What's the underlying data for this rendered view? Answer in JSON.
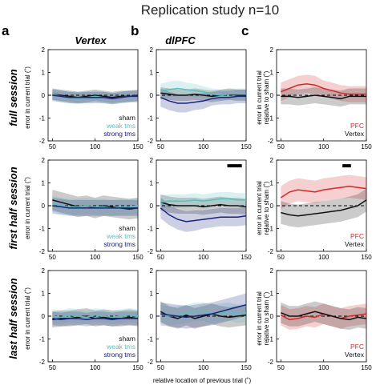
{
  "figure": {
    "title": "Replication study n=10",
    "panel_letters": [
      "a",
      "b",
      "c"
    ],
    "column_titles": [
      "Vertex",
      "dlPFC"
    ],
    "row_titles": [
      "full session",
      "first half session",
      "last half session"
    ],
    "ylabel_left": "error in current trial (˚)",
    "ylabel_right": [
      "error in current trial",
      "relative to sham (˚)"
    ],
    "xlabel": "relative location of previous trial (˚)"
  },
  "colors": {
    "sham": "#111111",
    "weak_tms": "#5bbfbf",
    "strong_tms": "#1a237e",
    "pfc": "#d62728",
    "vertex": "#111111",
    "sig_bar": "#000000"
  },
  "chart_data": [
    {
      "type": "line",
      "row": "full session",
      "column": "Vertex",
      "x": [
        50,
        60,
        70,
        80,
        90,
        100,
        110,
        120,
        130,
        140,
        150
      ],
      "xlim": [
        45,
        150
      ],
      "ylim": [
        -2,
        2
      ],
      "xticks": [
        50,
        100,
        150
      ],
      "yticks": [
        -2,
        -1,
        0,
        1,
        2
      ],
      "reference_line": 0,
      "legend": [
        "sham",
        "weak tms",
        "strong tms"
      ],
      "series": [
        {
          "name": "sham",
          "color": "#111111",
          "values": [
            0.05,
            0.0,
            -0.05,
            -0.1,
            -0.05,
            0.0,
            -0.05,
            -0.1,
            -0.05,
            -0.05,
            0.0
          ],
          "error": [
            0.25,
            0.25,
            0.25,
            0.25,
            0.25,
            0.25,
            0.25,
            0.25,
            0.25,
            0.25,
            0.25
          ]
        },
        {
          "name": "weak tms",
          "color": "#5bbfbf",
          "values": [
            0.05,
            -0.05,
            -0.1,
            -0.15,
            -0.1,
            -0.05,
            -0.1,
            -0.15,
            -0.1,
            -0.05,
            -0.05
          ],
          "error": [
            0.25,
            0.25,
            0.25,
            0.25,
            0.25,
            0.25,
            0.25,
            0.25,
            0.25,
            0.25,
            0.25
          ]
        },
        {
          "name": "strong tms",
          "color": "#1a237e",
          "values": [
            0.0,
            -0.05,
            -0.1,
            -0.1,
            -0.1,
            -0.1,
            -0.1,
            -0.15,
            -0.1,
            -0.05,
            -0.05
          ],
          "error": [
            0.25,
            0.25,
            0.25,
            0.25,
            0.25,
            0.25,
            0.25,
            0.25,
            0.25,
            0.25,
            0.25
          ]
        }
      ]
    },
    {
      "type": "line",
      "row": "full session",
      "column": "dlPFC",
      "x": [
        50,
        60,
        70,
        80,
        90,
        100,
        110,
        120,
        130,
        140,
        150
      ],
      "xlim": [
        45,
        150
      ],
      "ylim": [
        -2,
        2
      ],
      "xticks": [
        50,
        100,
        150
      ],
      "yticks": [
        -2,
        -1,
        0,
        1,
        2
      ],
      "reference_line": 0,
      "series": [
        {
          "name": "sham",
          "color": "#111111",
          "values": [
            0.1,
            0.05,
            0.0,
            0.0,
            0.05,
            0.0,
            -0.05,
            0.0,
            0.05,
            0.0,
            0.0
          ],
          "error": [
            0.25,
            0.25,
            0.25,
            0.25,
            0.25,
            0.25,
            0.25,
            0.25,
            0.25,
            0.25,
            0.25
          ]
        },
        {
          "name": "weak tms",
          "color": "#5bbfbf",
          "values": [
            0.2,
            0.25,
            0.3,
            0.25,
            0.2,
            0.15,
            0.05,
            0.0,
            0.05,
            0.05,
            0.05
          ],
          "error": [
            0.3,
            0.35,
            0.35,
            0.3,
            0.3,
            0.25,
            0.25,
            0.25,
            0.25,
            0.25,
            0.25
          ]
        },
        {
          "name": "strong tms",
          "color": "#1a237e",
          "values": [
            -0.1,
            -0.25,
            -0.35,
            -0.35,
            -0.3,
            -0.25,
            -0.15,
            -0.1,
            -0.1,
            -0.05,
            -0.05
          ],
          "error": [
            0.4,
            0.4,
            0.4,
            0.4,
            0.35,
            0.35,
            0.3,
            0.3,
            0.3,
            0.3,
            0.3
          ]
        }
      ]
    },
    {
      "type": "line",
      "row": "full session",
      "column": "relative",
      "x": [
        50,
        60,
        70,
        80,
        90,
        100,
        110,
        120,
        130,
        140,
        150
      ],
      "xlim": [
        45,
        150
      ],
      "ylim": [
        -2,
        2
      ],
      "xticks": [
        50,
        100,
        150
      ],
      "yticks": [
        -2,
        -1,
        0,
        1,
        2
      ],
      "reference_line": 0,
      "legend": [
        "PFC",
        "Vertex"
      ],
      "series": [
        {
          "name": "PFC",
          "color": "#d62728",
          "values": [
            0.15,
            0.3,
            0.45,
            0.5,
            0.45,
            0.3,
            0.2,
            0.1,
            0.05,
            0.05,
            0.05
          ],
          "error": [
            0.4,
            0.4,
            0.4,
            0.4,
            0.4,
            0.35,
            0.35,
            0.35,
            0.35,
            0.35,
            0.35
          ]
        },
        {
          "name": "Vertex",
          "color": "#111111",
          "values": [
            -0.05,
            -0.05,
            -0.1,
            -0.05,
            0.0,
            -0.05,
            -0.1,
            -0.15,
            -0.05,
            -0.05,
            -0.05
          ],
          "error": [
            0.35,
            0.35,
            0.35,
            0.35,
            0.35,
            0.35,
            0.35,
            0.35,
            0.35,
            0.35,
            0.35
          ]
        }
      ]
    },
    {
      "type": "line",
      "row": "first half session",
      "column": "Vertex",
      "x": [
        50,
        60,
        70,
        80,
        90,
        100,
        110,
        120,
        130,
        140,
        150
      ],
      "xlim": [
        45,
        150
      ],
      "ylim": [
        -2,
        2
      ],
      "xticks": [
        50,
        100,
        150
      ],
      "yticks": [
        -2,
        -1,
        0,
        1,
        2
      ],
      "reference_line": 0,
      "legend": [
        "sham",
        "weak tms",
        "strong tms"
      ],
      "series": [
        {
          "name": "sham",
          "color": "#111111",
          "values": [
            0.25,
            0.15,
            0.05,
            -0.05,
            0.0,
            -0.1,
            0.0,
            -0.05,
            -0.1,
            -0.15,
            -0.1
          ],
          "error": [
            0.45,
            0.45,
            0.45,
            0.45,
            0.45,
            0.45,
            0.45,
            0.45,
            0.45,
            0.45,
            0.45
          ]
        },
        {
          "name": "weak tms",
          "color": "#5bbfbf",
          "values": [
            0.1,
            0.0,
            -0.05,
            -0.05,
            0.0,
            -0.05,
            -0.05,
            -0.1,
            -0.05,
            -0.05,
            0.0
          ],
          "error": [
            0.35,
            0.35,
            0.35,
            0.35,
            0.35,
            0.35,
            0.35,
            0.35,
            0.35,
            0.35,
            0.35
          ]
        },
        {
          "name": "strong tms",
          "color": "#1a237e",
          "values": [
            0.0,
            -0.05,
            -0.1,
            -0.1,
            -0.1,
            -0.1,
            -0.1,
            -0.1,
            -0.1,
            -0.1,
            -0.1
          ],
          "error": [
            0.35,
            0.35,
            0.35,
            0.35,
            0.35,
            0.35,
            0.35,
            0.35,
            0.35,
            0.35,
            0.35
          ]
        }
      ]
    },
    {
      "type": "line",
      "row": "first half session",
      "column": "dlPFC",
      "x": [
        50,
        60,
        70,
        80,
        90,
        100,
        110,
        120,
        130,
        140,
        150
      ],
      "xlim": [
        45,
        150
      ],
      "ylim": [
        -2,
        2
      ],
      "xticks": [
        50,
        100,
        150
      ],
      "yticks": [
        -2,
        -1,
        0,
        1,
        2
      ],
      "reference_line": 0,
      "significance": [
        {
          "x_start": 128,
          "x_end": 145,
          "y": 1.75
        }
      ],
      "series": [
        {
          "name": "sham",
          "color": "#111111",
          "values": [
            0.15,
            0.05,
            0.0,
            0.0,
            0.0,
            -0.05,
            0.0,
            0.05,
            0.0,
            0.0,
            -0.05
          ],
          "error": [
            0.35,
            0.35,
            0.35,
            0.35,
            0.35,
            0.35,
            0.35,
            0.35,
            0.35,
            0.35,
            0.35
          ]
        },
        {
          "name": "weak tms",
          "color": "#5bbfbf",
          "values": [
            0.15,
            0.2,
            0.2,
            0.2,
            0.25,
            0.2,
            0.25,
            0.3,
            0.3,
            0.25,
            0.25
          ],
          "error": [
            0.3,
            0.3,
            0.3,
            0.3,
            0.3,
            0.3,
            0.3,
            0.3,
            0.3,
            0.3,
            0.3
          ]
        },
        {
          "name": "strong tms",
          "color": "#1a237e",
          "values": [
            -0.1,
            -0.4,
            -0.6,
            -0.7,
            -0.65,
            -0.6,
            -0.55,
            -0.5,
            -0.5,
            -0.5,
            -0.45
          ],
          "error": [
            0.45,
            0.45,
            0.45,
            0.45,
            0.45,
            0.4,
            0.4,
            0.4,
            0.4,
            0.4,
            0.4
          ]
        }
      ]
    },
    {
      "type": "line",
      "row": "first half session",
      "column": "relative",
      "x": [
        50,
        60,
        70,
        80,
        90,
        100,
        110,
        120,
        130,
        140,
        150
      ],
      "xlim": [
        45,
        150
      ],
      "ylim": [
        -2,
        2
      ],
      "xticks": [
        50,
        100,
        150
      ],
      "yticks": [
        -2,
        -1,
        0,
        1,
        2
      ],
      "reference_line": 0,
      "significance": [
        {
          "x_start": 122,
          "x_end": 132,
          "y": 1.75
        }
      ],
      "legend": [
        "PFC",
        "Vertex"
      ],
      "series": [
        {
          "name": "PFC",
          "color": "#d62728",
          "values": [
            0.35,
            0.6,
            0.7,
            0.65,
            0.6,
            0.7,
            0.75,
            0.8,
            0.85,
            0.8,
            0.75
          ],
          "error": [
            0.5,
            0.5,
            0.5,
            0.5,
            0.5,
            0.5,
            0.5,
            0.5,
            0.5,
            0.5,
            0.5
          ]
        },
        {
          "name": "Vertex",
          "color": "#111111",
          "values": [
            -0.3,
            -0.4,
            -0.45,
            -0.4,
            -0.35,
            -0.3,
            -0.25,
            -0.2,
            -0.1,
            0.0,
            0.25
          ],
          "error": [
            0.5,
            0.5,
            0.5,
            0.5,
            0.5,
            0.5,
            0.5,
            0.5,
            0.5,
            0.5,
            0.5
          ]
        }
      ]
    },
    {
      "type": "line",
      "row": "last half session",
      "column": "Vertex",
      "x": [
        50,
        60,
        70,
        80,
        90,
        100,
        110,
        120,
        130,
        140,
        150
      ],
      "xlim": [
        45,
        150
      ],
      "ylim": [
        -2,
        2
      ],
      "xticks": [
        50,
        100,
        150
      ],
      "yticks": [
        -2,
        -1,
        0,
        1,
        2
      ],
      "reference_line": 0,
      "legend": [
        "sham",
        "weak tms",
        "strong tms"
      ],
      "series": [
        {
          "name": "sham",
          "color": "#111111",
          "values": [
            -0.15,
            -0.1,
            -0.1,
            -0.05,
            0.0,
            -0.1,
            -0.05,
            -0.1,
            -0.1,
            -0.05,
            -0.1
          ],
          "error": [
            0.35,
            0.35,
            0.35,
            0.35,
            0.35,
            0.35,
            0.35,
            0.35,
            0.35,
            0.35,
            0.35
          ]
        },
        {
          "name": "weak tms",
          "color": "#5bbfbf",
          "values": [
            0.0,
            -0.05,
            0.05,
            0.0,
            -0.05,
            0.05,
            0.0,
            -0.05,
            0.0,
            0.05,
            0.0
          ],
          "error": [
            0.3,
            0.3,
            0.3,
            0.3,
            0.3,
            0.3,
            0.3,
            0.3,
            0.3,
            0.3,
            0.3
          ]
        },
        {
          "name": "strong tms",
          "color": "#1a237e",
          "values": [
            -0.1,
            -0.15,
            -0.1,
            -0.1,
            -0.15,
            -0.1,
            -0.1,
            -0.15,
            -0.1,
            -0.1,
            -0.1
          ],
          "error": [
            0.3,
            0.3,
            0.3,
            0.3,
            0.3,
            0.3,
            0.3,
            0.3,
            0.3,
            0.3,
            0.3
          ]
        }
      ]
    },
    {
      "type": "line",
      "row": "last half session",
      "column": "dlPFC",
      "x": [
        50,
        60,
        70,
        80,
        90,
        100,
        110,
        120,
        130,
        140,
        150
      ],
      "xlim": [
        45,
        150
      ],
      "ylim": [
        -2,
        2
      ],
      "xticks": [
        50,
        100,
        150
      ],
      "yticks": [
        -2,
        -1,
        0,
        1,
        2
      ],
      "reference_line": 0,
      "series": [
        {
          "name": "sham",
          "color": "#111111",
          "values": [
            0.2,
            0.0,
            -0.1,
            0.05,
            -0.1,
            0.0,
            0.1,
            0.0,
            -0.05,
            0.0,
            0.05
          ],
          "error": [
            0.45,
            0.45,
            0.45,
            0.45,
            0.45,
            0.45,
            0.45,
            0.45,
            0.45,
            0.45,
            0.45
          ]
        },
        {
          "name": "weak tms",
          "color": "#5bbfbf",
          "values": [
            0.1,
            0.0,
            0.05,
            0.1,
            0.2,
            0.2,
            0.1,
            0.15,
            0.2,
            0.1,
            0.15
          ],
          "error": [
            0.4,
            0.4,
            0.4,
            0.4,
            0.4,
            0.4,
            0.4,
            0.4,
            0.4,
            0.4,
            0.4
          ]
        },
        {
          "name": "strong tms",
          "color": "#1a237e",
          "values": [
            0.1,
            0.05,
            0.0,
            -0.05,
            0.0,
            0.05,
            0.1,
            0.2,
            0.3,
            0.4,
            0.5
          ],
          "error": [
            0.5,
            0.5,
            0.5,
            0.5,
            0.5,
            0.5,
            0.5,
            0.5,
            0.5,
            0.5,
            0.5
          ]
        }
      ]
    },
    {
      "type": "line",
      "row": "last half session",
      "column": "relative",
      "x": [
        50,
        60,
        70,
        80,
        90,
        100,
        110,
        120,
        130,
        140,
        150
      ],
      "xlim": [
        45,
        150
      ],
      "ylim": [
        -2,
        2
      ],
      "xticks": [
        50,
        100,
        150
      ],
      "yticks": [
        -2,
        -1,
        0,
        1,
        2
      ],
      "reference_line": 0,
      "legend": [
        "PFC",
        "Vertex"
      ],
      "series": [
        {
          "name": "PFC",
          "color": "#d62728",
          "values": [
            0.05,
            -0.15,
            -0.1,
            0.0,
            -0.05,
            0.1,
            0.0,
            -0.1,
            0.0,
            0.05,
            0.1
          ],
          "error": [
            0.45,
            0.45,
            0.45,
            0.45,
            0.45,
            0.45,
            0.45,
            0.45,
            0.45,
            0.45,
            0.45
          ]
        },
        {
          "name": "Vertex",
          "color": "#111111",
          "values": [
            0.15,
            0.0,
            0.0,
            0.1,
            0.2,
            0.1,
            0.0,
            -0.1,
            -0.15,
            -0.05,
            -0.1
          ],
          "error": [
            0.45,
            0.45,
            0.45,
            0.45,
            0.45,
            0.45,
            0.45,
            0.45,
            0.45,
            0.45,
            0.45
          ]
        }
      ]
    }
  ]
}
